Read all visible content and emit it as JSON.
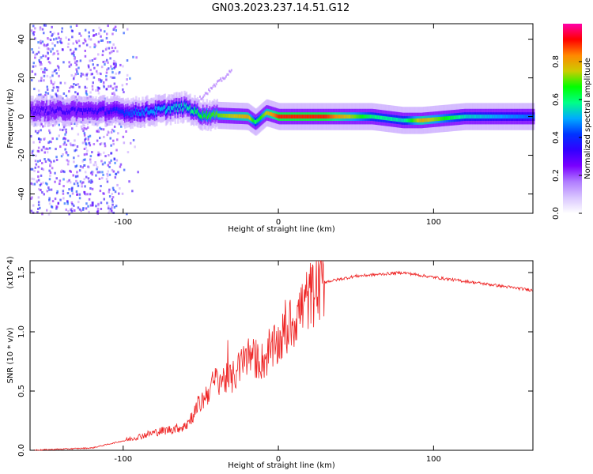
{
  "title": "GN03.2023.237.14.51.G12",
  "colors": {
    "snr_line": "#ee2222",
    "axis": "#000000",
    "colormap": [
      "#ffffff",
      "#d9c6ff",
      "#b07cff",
      "#7a00ff",
      "#3300ff",
      "#0033ff",
      "#00aaff",
      "#00ff88",
      "#00ff00",
      "#cccc00",
      "#ff8800",
      "#ff0000",
      "#ff00aa"
    ]
  },
  "chart_data": [
    {
      "type": "heatmap",
      "xlabel": "Height of straight line (km)",
      "ylabel": "Frequency (Hz)",
      "xlim": [
        -160,
        164
      ],
      "ylim": [
        -50,
        48
      ],
      "xticks": [
        -100,
        0,
        100
      ],
      "yticks": [
        -40,
        -20,
        0,
        20,
        40
      ],
      "colorbar": {
        "label": "Normalized spectral amplitude",
        "range": [
          0.0,
          1.0
        ],
        "ticks": [
          0.0,
          0.2,
          0.4,
          0.6,
          0.8
        ]
      },
      "ridge": {
        "description_points": [
          {
            "x": -160,
            "freq": 3,
            "amp": 0.3
          },
          {
            "x": -110,
            "freq": 3,
            "amp": 0.35
          },
          {
            "x": -95,
            "freq": 2,
            "amp": 0.45
          },
          {
            "x": -80,
            "freq": 3,
            "amp": 0.5
          },
          {
            "x": -60,
            "freq": 5,
            "amp": 0.55
          },
          {
            "x": -50,
            "freq": 1,
            "amp": 0.65
          },
          {
            "x": -20,
            "freq": 0,
            "amp": 0.8
          },
          {
            "x": -15,
            "freq": -3,
            "amp": 0.6
          },
          {
            "x": -8,
            "freq": 2,
            "amp": 0.75
          },
          {
            "x": 0,
            "freq": 0,
            "amp": 0.9
          },
          {
            "x": 30,
            "freq": 0,
            "amp": 0.9
          },
          {
            "x": 60,
            "freq": 0,
            "amp": 0.6
          },
          {
            "x": 80,
            "freq": -2,
            "amp": 0.55
          },
          {
            "x": 92,
            "freq": -2,
            "amp": 0.8
          },
          {
            "x": 120,
            "freq": 0,
            "amp": 0.55
          },
          {
            "x": 164,
            "freq": 0,
            "amp": 0.45
          }
        ]
      }
    },
    {
      "type": "line",
      "xlabel": "Height of straight line (km)",
      "ylabel": "SNR (10 * v/v)",
      "y_multiplier": "(x10^4)",
      "xlim": [
        -160,
        164
      ],
      "ylim": [
        0,
        1.6
      ],
      "xticks": [
        -100,
        0,
        100
      ],
      "yticks": [
        0.0,
        0.5,
        1.0,
        1.5
      ],
      "series": [
        {
          "envelope": [
            {
              "x": -160,
              "y": 0.0
            },
            {
              "x": -120,
              "y": 0.02
            },
            {
              "x": -100,
              "y": 0.08
            },
            {
              "x": -80,
              "y": 0.15
            },
            {
              "x": -60,
              "y": 0.2
            },
            {
              "x": -50,
              "y": 0.4
            },
            {
              "x": -40,
              "y": 0.6
            },
            {
              "x": -30,
              "y": 0.6
            },
            {
              "x": -20,
              "y": 0.8
            },
            {
              "x": -10,
              "y": 0.75
            },
            {
              "x": 0,
              "y": 0.9
            },
            {
              "x": 10,
              "y": 1.1
            },
            {
              "x": 20,
              "y": 1.3
            },
            {
              "x": 30,
              "y": 1.42
            },
            {
              "x": 50,
              "y": 1.47
            },
            {
              "x": 80,
              "y": 1.5
            },
            {
              "x": 100,
              "y": 1.46
            },
            {
              "x": 130,
              "y": 1.41
            },
            {
              "x": 164,
              "y": 1.35
            }
          ]
        }
      ]
    }
  ]
}
